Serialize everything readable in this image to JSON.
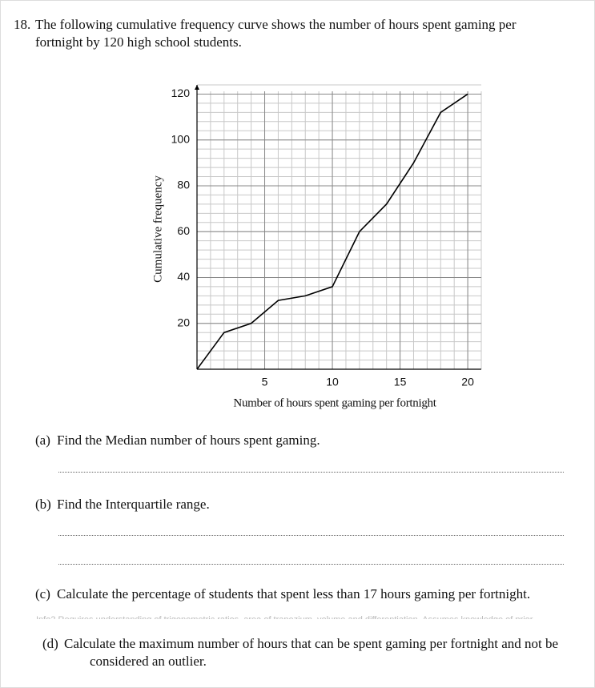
{
  "question": {
    "number": "18.",
    "text": "The following cumulative frequency curve shows the number of hours spent gaming per fortnight by 120 high school students."
  },
  "chart_data": {
    "type": "line",
    "xlabel": "Number of hours spent gaming per fortnight",
    "ylabel": "Cumulative frequency",
    "x": [
      0,
      2,
      4,
      6,
      8,
      10,
      12,
      14,
      16,
      18,
      20
    ],
    "values": [
      0,
      16,
      20,
      30,
      32,
      36,
      60,
      72,
      90,
      112,
      120
    ],
    "color": "#000000",
    "xlim": [
      0,
      21
    ],
    "ylim": [
      0,
      124
    ],
    "xticks": [
      5,
      10,
      15,
      20
    ],
    "yticks": [
      20,
      40,
      60,
      80,
      100,
      120
    ],
    "grid": true
  },
  "parts": [
    {
      "label": "(a)",
      "text": "Find the Median number of hours spent gaming."
    },
    {
      "label": "(b)",
      "text": "Find the Interquartile range."
    },
    {
      "label": "(c)",
      "text": "Calculate the percentage of students that spent less than 17 hours gaming per fortnight."
    },
    {
      "label": "(d)",
      "text": "Calculate the maximum number of hours that can be spent gaming per fortnight and not be considered an outlier."
    }
  ],
  "faded_note": "Info2  Requires understanding of trigonometric ratios, area of trapezium, volume and differentiation. Assumes knowledge of prior"
}
